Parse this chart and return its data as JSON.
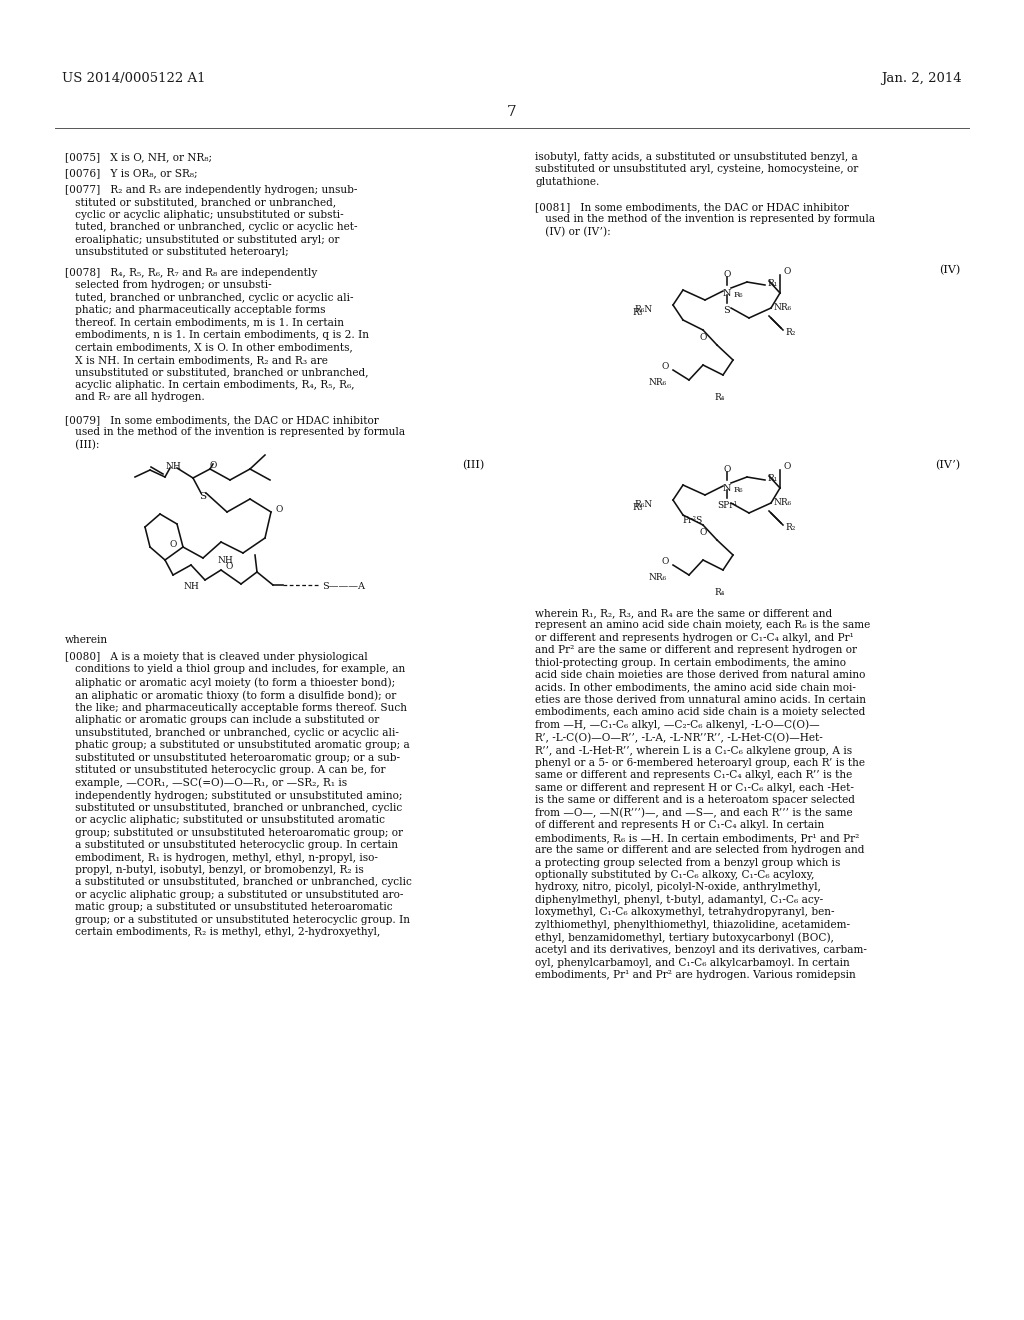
{
  "background_color": "#ffffff",
  "page_header_left": "US 2014/0005122 A1",
  "page_header_right": "Jan. 2, 2014",
  "page_number": "7"
}
